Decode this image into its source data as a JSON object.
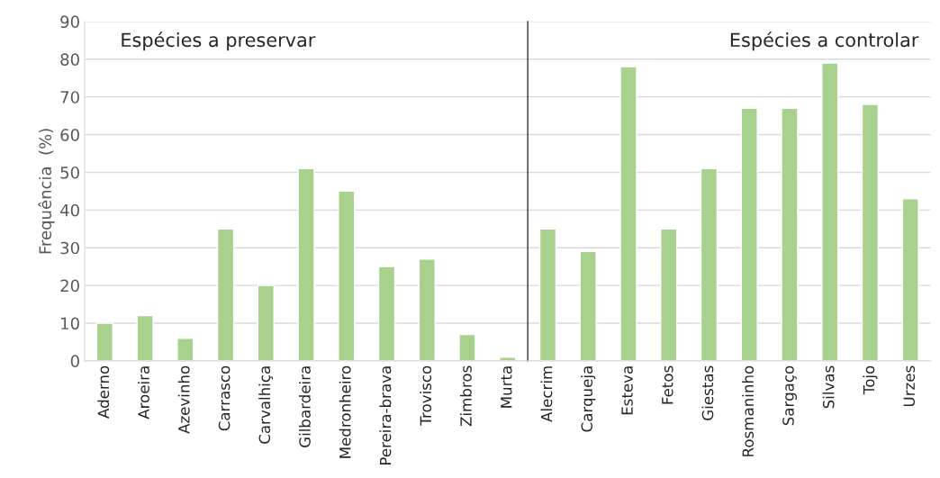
{
  "chart_data": [
    {
      "type": "bar",
      "ylabel": "Frequência  (%)",
      "categories": [
        "Aderno",
        "Aroeira",
        "Azevinho",
        "Carrasco",
        "Carvalhiça",
        "Gilbardeira",
        "Medronheiro",
        "Pereira-brava",
        "Trovisco",
        "Zimbros",
        "Murta"
      ],
      "values": [
        10,
        12,
        6,
        35,
        20,
        51,
        45,
        25,
        27,
        7,
        1
      ],
      "color": "#a9d18e",
      "ylim": [
        0,
        90
      ],
      "yticks": [
        0,
        10,
        20,
        30,
        40,
        50,
        60,
        70,
        80,
        90
      ],
      "grid": "y",
      "annotations": [
        "Espécies a preservar"
      ]
    },
    {
      "type": "bar",
      "categories": [
        "Alecrim",
        "Carqueja",
        "Esteva",
        "Fetos",
        "Giestas",
        "Rosmaninho",
        "Sargaço",
        "Silvas",
        "Tojo",
        "Urzes"
      ],
      "values": [
        35,
        29,
        78,
        35,
        51,
        67,
        67,
        79,
        68,
        43
      ],
      "color": "#a9d18e",
      "ylim": [
        0,
        90
      ],
      "yticks": [
        0,
        10,
        20,
        30,
        40,
        50,
        60,
        70,
        80,
        90
      ],
      "grid": "y",
      "tick_labels": "x",
      "annotations": [
        "Espécies a controlar"
      ]
    }
  ]
}
